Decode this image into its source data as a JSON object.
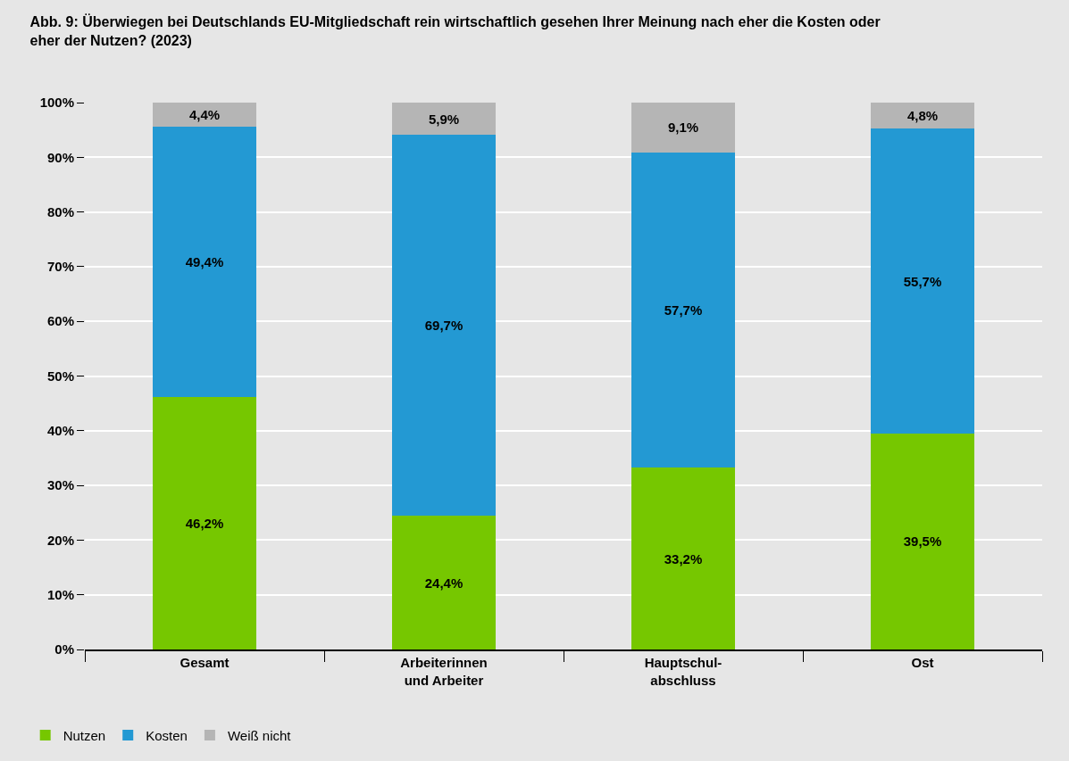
{
  "chart_data": {
    "type": "bar",
    "title": "Abb. 9: Überwiegen bei Deutschlands EU-Mitgliedschaft rein wirtschaftlich gesehen Ihrer Meinung nach eher die Kosten oder\neher der Nutzen? (2023)",
    "categories": [
      "Gesamt",
      "Arbeiterinnen\nund Arbeiter",
      "Hauptschul-\nabschluss",
      "Ost"
    ],
    "series": [
      {
        "name": "Nutzen",
        "color": "#76c700",
        "values": [
          46.2,
          24.4,
          33.2,
          39.5
        ],
        "value_labels": [
          "46,2%",
          "24,4%",
          "33,2%",
          "39,5%"
        ]
      },
      {
        "name": "Kosten",
        "color": "#2399d3",
        "values": [
          49.4,
          69.7,
          57.7,
          55.7
        ],
        "value_labels": [
          "49,4%",
          "69,7%",
          "57,7%",
          "55,7%"
        ]
      },
      {
        "name": "Weiß nicht",
        "color": "#b5b5b5",
        "values": [
          4.4,
          5.9,
          9.1,
          4.8
        ],
        "value_labels": [
          "4,4%",
          "5,9%",
          "9,1%",
          "4,8%"
        ]
      }
    ],
    "stacked": true,
    "grid": "y",
    "legend": "bottom left",
    "ylim": [
      0,
      100
    ],
    "yticks": [
      {
        "value": 0,
        "label": "0%"
      },
      {
        "value": 10,
        "label": "10%"
      },
      {
        "value": 20,
        "label": "20%"
      },
      {
        "value": 30,
        "label": "30%"
      },
      {
        "value": 40,
        "label": "40%"
      },
      {
        "value": 50,
        "label": "50%"
      },
      {
        "value": 60,
        "label": "60%"
      },
      {
        "value": 70,
        "label": "70%"
      },
      {
        "value": 80,
        "label": "80%"
      },
      {
        "value": 90,
        "label": "90%"
      },
      {
        "value": 100,
        "label": "100%"
      }
    ]
  }
}
